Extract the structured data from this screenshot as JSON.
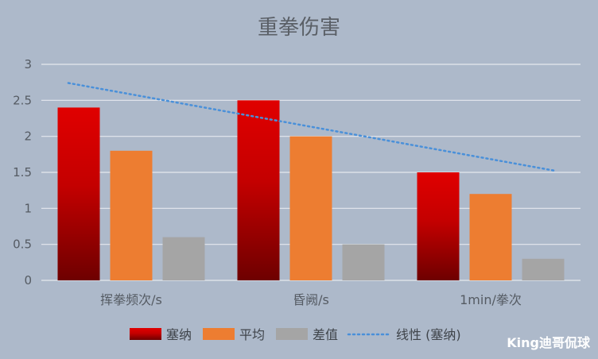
{
  "chart_data": {
    "type": "bar",
    "title": "重拳伤害",
    "categories": [
      "挥拳频次/s",
      "昏阙/s",
      "1min/拳次"
    ],
    "series": [
      {
        "name": "塞纳",
        "values": [
          2.4,
          2.5,
          1.5
        ],
        "color": "#e00000"
      },
      {
        "name": "平均",
        "values": [
          1.8,
          2.0,
          1.2
        ],
        "color": "#ed7d31"
      },
      {
        "name": "差值",
        "values": [
          0.6,
          0.5,
          0.3
        ],
        "color": "#a5a5a5"
      }
    ],
    "trendline": {
      "name": "线性 (塞纳)",
      "type": "linear",
      "of_series": "塞纳",
      "color": "#4a90d9",
      "style": "dotted"
    },
    "ylim": [
      0,
      3
    ],
    "yticks": [
      "0",
      "0.5",
      "1",
      "1.5",
      "2",
      "2.5",
      "3"
    ],
    "grid": true,
    "legend_position": "bottom",
    "background": "#adb9ca"
  },
  "watermark": "King迪哥侃球"
}
